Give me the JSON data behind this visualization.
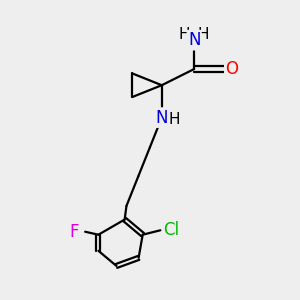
{
  "background_color": "#eeeeee",
  "atom_colors": {
    "C": "#000000",
    "N": "#0000dd",
    "O": "#ff0000",
    "F": "#dd00dd",
    "Cl": "#00bb00",
    "H": "#000000"
  },
  "bond_color": "#000000",
  "bond_width": 1.6,
  "font_size": 12,
  "figsize": [
    3.0,
    3.0
  ],
  "dpi": 100
}
